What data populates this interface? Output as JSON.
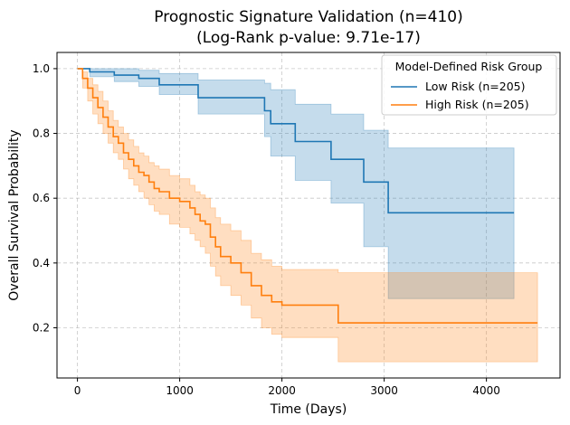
{
  "chart_data": {
    "type": "line",
    "title_line1": "Prognostic Signature Validation (n=410)",
    "title_line2": "(Log-Rank p-value: 9.71e-17)",
    "xlabel": "Time (Days)",
    "ylabel": "Overall Survival Probability",
    "xlim": [
      -200,
      4720
    ],
    "ylim": [
      0.045,
      1.05
    ],
    "xticks": [
      0,
      1000,
      2000,
      3000,
      4000
    ],
    "yticks": [
      0.2,
      0.4,
      0.6,
      0.8,
      1.0
    ],
    "xtick_labels": [
      "0",
      "1000",
      "2000",
      "3000",
      "4000"
    ],
    "ytick_labels": [
      "0.2",
      "0.4",
      "0.6",
      "0.8",
      "1.0"
    ],
    "grid": true,
    "legend": {
      "title": "Model-Defined Risk Group",
      "placement": "top-right"
    },
    "series": [
      {
        "name": "Low Risk (n=205)",
        "color": "#1f77b4",
        "x": [
          0,
          120,
          360,
          600,
          800,
          1180,
          1830,
          1890,
          2130,
          2480,
          2800,
          3040,
          4270
        ],
        "y": [
          1.0,
          0.99,
          0.98,
          0.97,
          0.95,
          0.91,
          0.87,
          0.83,
          0.775,
          0.72,
          0.65,
          0.555,
          0.555
        ],
        "lower": [
          1.0,
          0.975,
          0.96,
          0.945,
          0.92,
          0.86,
          0.79,
          0.73,
          0.655,
          0.585,
          0.45,
          0.29,
          0.29
        ],
        "upper": [
          1.0,
          1.0,
          1.0,
          0.995,
          0.985,
          0.965,
          0.955,
          0.935,
          0.89,
          0.86,
          0.81,
          0.755,
          0.755
        ]
      },
      {
        "name": "High Risk (n=205)",
        "color": "#ff7f0e",
        "x": [
          0,
          50,
          100,
          150,
          200,
          250,
          300,
          350,
          400,
          450,
          500,
          550,
          600,
          650,
          700,
          750,
          800,
          900,
          1000,
          1100,
          1150,
          1200,
          1250,
          1300,
          1350,
          1400,
          1500,
          1600,
          1700,
          1800,
          1900,
          2000,
          2550,
          4500
        ],
        "y": [
          1.0,
          0.97,
          0.94,
          0.91,
          0.88,
          0.85,
          0.82,
          0.79,
          0.77,
          0.74,
          0.72,
          0.7,
          0.68,
          0.67,
          0.65,
          0.63,
          0.62,
          0.6,
          0.59,
          0.57,
          0.55,
          0.53,
          0.52,
          0.48,
          0.45,
          0.42,
          0.4,
          0.37,
          0.33,
          0.3,
          0.28,
          0.27,
          0.215,
          0.215
        ],
        "lower": [
          1.0,
          0.94,
          0.9,
          0.86,
          0.83,
          0.8,
          0.77,
          0.74,
          0.72,
          0.69,
          0.66,
          0.64,
          0.62,
          0.6,
          0.58,
          0.56,
          0.55,
          0.52,
          0.51,
          0.49,
          0.47,
          0.45,
          0.43,
          0.39,
          0.36,
          0.33,
          0.3,
          0.27,
          0.23,
          0.2,
          0.18,
          0.17,
          0.095,
          0.095
        ],
        "upper": [
          1.0,
          0.99,
          0.97,
          0.95,
          0.93,
          0.9,
          0.87,
          0.84,
          0.82,
          0.8,
          0.78,
          0.76,
          0.74,
          0.73,
          0.71,
          0.7,
          0.69,
          0.67,
          0.66,
          0.64,
          0.62,
          0.61,
          0.6,
          0.57,
          0.54,
          0.52,
          0.5,
          0.47,
          0.43,
          0.41,
          0.39,
          0.38,
          0.37,
          0.37
        ]
      }
    ]
  }
}
